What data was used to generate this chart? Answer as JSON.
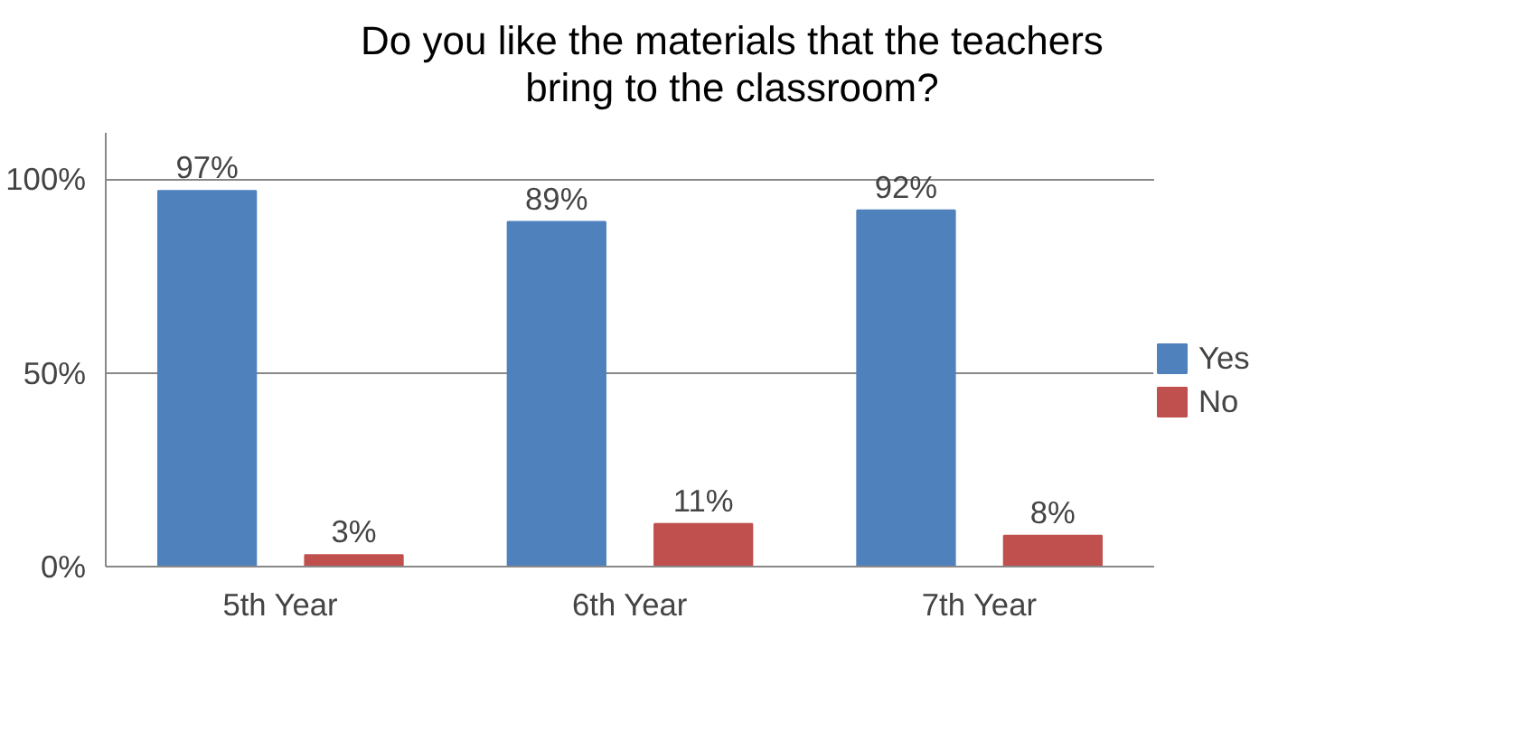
{
  "chart_data": {
    "type": "bar",
    "title": "Do you like the materials that the teachers bring to the classroom?",
    "categories": [
      "5th Year",
      "6th Year",
      "7th Year"
    ],
    "series": [
      {
        "name": "Yes",
        "color": "#4f81bd",
        "values": [
          97,
          89,
          92
        ],
        "value_labels": [
          "97%",
          "89%",
          "92%"
        ]
      },
      {
        "name": "No",
        "color": "#c0504d",
        "values": [
          3,
          11,
          8
        ],
        "value_labels": [
          "3%",
          "11%",
          "8%"
        ]
      }
    ],
    "ylim": [
      0,
      112
    ],
    "yticks": [
      {
        "value": 0,
        "label": "0%"
      },
      {
        "value": 50,
        "label": "50%"
      },
      {
        "value": 100,
        "label": "100%"
      }
    ],
    "grid": "y",
    "legend": "right"
  }
}
